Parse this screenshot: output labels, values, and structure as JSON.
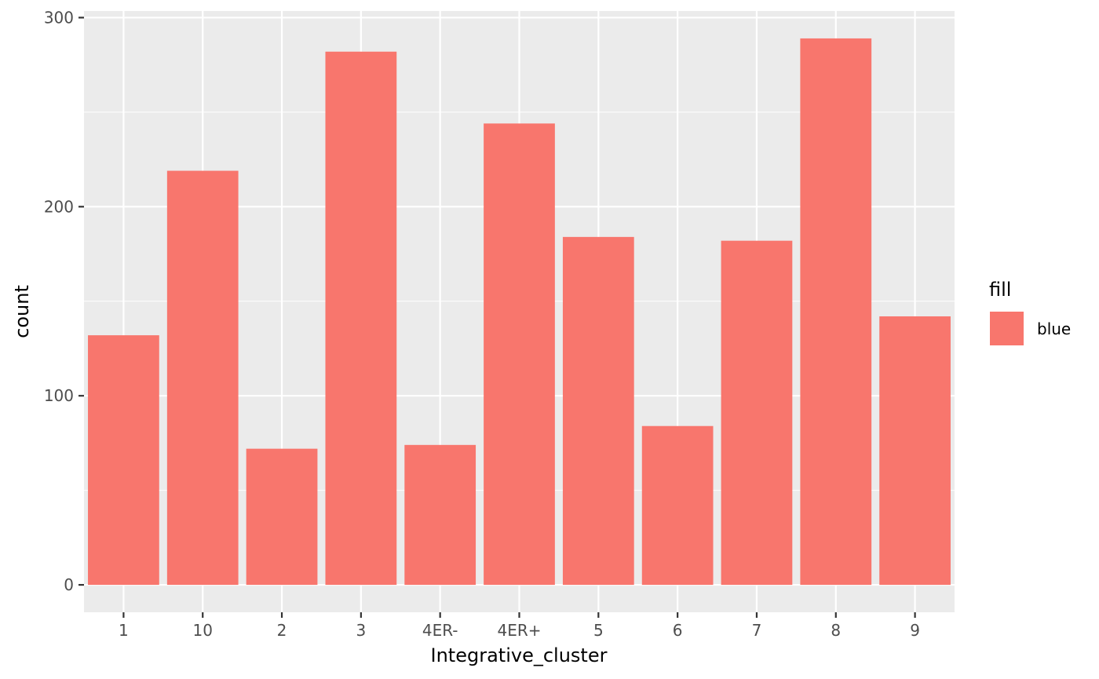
{
  "chart_data": {
    "type": "bar",
    "categories": [
      "1",
      "10",
      "2",
      "3",
      "4ER-",
      "4ER+",
      "5",
      "6",
      "7",
      "8",
      "9"
    ],
    "values": [
      132,
      219,
      72,
      282,
      74,
      244,
      184,
      84,
      182,
      289,
      142
    ],
    "xlabel": "Integrative_cluster",
    "ylabel": "count",
    "ylim": [
      -14.5,
      303.5
    ],
    "yticks": [
      0,
      100,
      200,
      300
    ],
    "grid": true,
    "legend": {
      "title": "fill",
      "placement": "right",
      "entries": [
        {
          "label": "blue",
          "color": "#F8766D"
        }
      ]
    },
    "colors": {
      "bar": "#F8766D",
      "panel": "#EBEBEB",
      "grid": "#FFFFFF"
    }
  }
}
